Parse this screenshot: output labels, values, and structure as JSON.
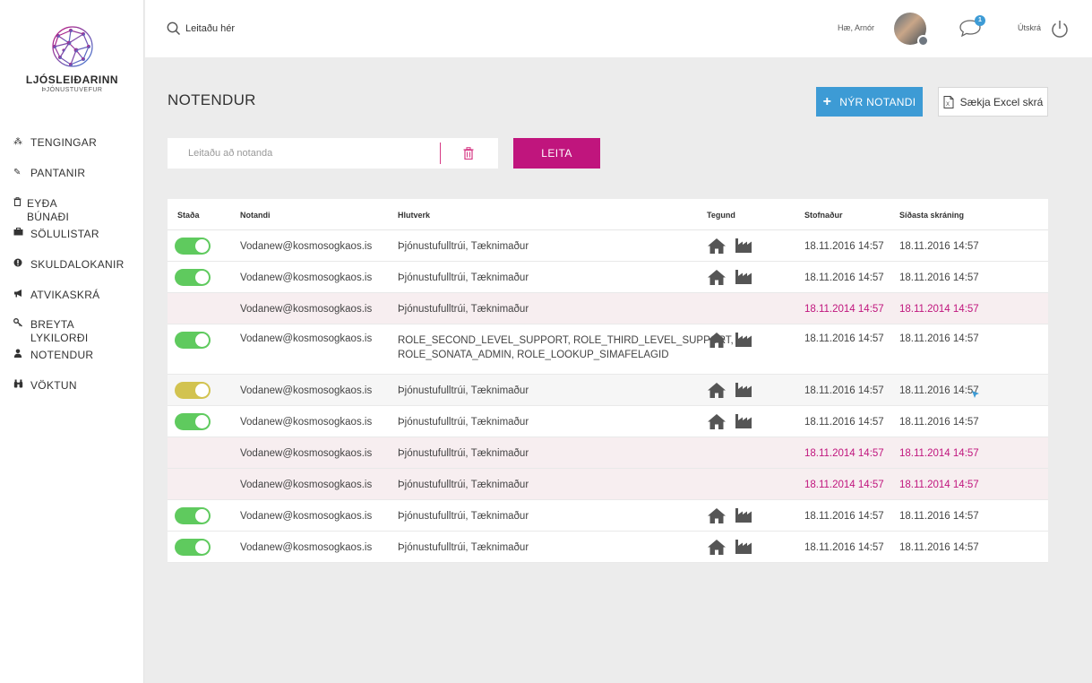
{
  "brand": {
    "name": "LJÓSLEIÐARINN",
    "subtitle": "ÞJÓNUSTUVEFUR"
  },
  "sidebar": {
    "items": [
      {
        "label": "TENGINGAR",
        "icon": "connections-icon"
      },
      {
        "label": "PANTANIR",
        "icon": "orders-icon"
      },
      {
        "label": "EYÐA BÚNAÐI",
        "icon": "trash-icon"
      },
      {
        "label": "SÖLULISTAR",
        "icon": "briefcase-icon"
      },
      {
        "label": "SKULDALOKANIR",
        "icon": "alert-icon"
      },
      {
        "label": "ATVIKASKRÁ",
        "icon": "megaphone-icon"
      },
      {
        "label": "BREYTA\nLYKILORÐI",
        "icon": "key-icon"
      },
      {
        "label": "NOTENDUR",
        "icon": "user-icon"
      },
      {
        "label": "VÖKTUN",
        "icon": "binoculars-icon"
      }
    ]
  },
  "topbar": {
    "search_placeholder": "Leitaðu hér",
    "greeting": "Hæ, Arnór",
    "notification_count": "1",
    "logout_label": "Útskrá"
  },
  "main": {
    "title": "NOTENDUR",
    "new_user_button": "NÝR NOTANDI",
    "excel_button": "Sækja Excel skrá",
    "user_search_placeholder": "Leitaðu að notanda",
    "search_button": "LEITA"
  },
  "table": {
    "columns": [
      "Staða",
      "Notandi",
      "Hlutverk",
      "Tegund",
      "Stofnaður",
      "Síðasta skráning"
    ],
    "rows": [
      {
        "status": "on",
        "user": "Vodanew@kosmosogkaos.is",
        "role": "Þjónustufulltrúi, Tæknimaður",
        "types": [
          "home-icon",
          "factory-icon"
        ],
        "created": "18.11.2016 14:57",
        "last_login": "18.11.2016 14:57"
      },
      {
        "status": "on",
        "user": "Vodanew@kosmosogkaos.is",
        "role": "Þjónustufulltrúi, Tæknimaður",
        "types": [
          "home-icon",
          "factory-icon"
        ],
        "created": "18.11.2016 14:57",
        "last_login": "18.11.2016 14:57"
      },
      {
        "status": "none",
        "user": "Vodanew@kosmosogkaos.is",
        "role": "Þjónustufulltrúi, Tæknimaður",
        "types": [],
        "created": "18.11.2014 14:57",
        "last_login": "18.11.2014 14:57"
      },
      {
        "status": "on",
        "user": "Vodanew@kosmosogkaos.is",
        "role": "ROLE_SECOND_LEVEL_SUPPORT, ROLE_THIRD_LEVEL_SUPPORT,\nROLE_SONATA_ADMIN, ROLE_LOOKUP_SIMAFELAGID",
        "types": [
          "home-icon",
          "factory-icon"
        ],
        "created": "18.11.2016 14:57",
        "last_login": "18.11.2016 14:57"
      },
      {
        "status": "pending",
        "user": "Vodanew@kosmosogkaos.is",
        "role": "Þjónustufulltrúi, Tæknimaður",
        "types": [
          "home-icon",
          "factory-icon"
        ],
        "created": "18.11.2016 14:57",
        "last_login": "18.11.2016 14:57"
      },
      {
        "status": "on",
        "user": "Vodanew@kosmosogkaos.is",
        "role": "Þjónustufulltrúi, Tæknimaður",
        "types": [
          "home-icon",
          "factory-icon"
        ],
        "created": "18.11.2016 14:57",
        "last_login": "18.11.2016 14:57"
      },
      {
        "status": "none",
        "user": "Vodanew@kosmosogkaos.is",
        "role": "Þjónustufulltrúi, Tæknimaður",
        "types": [],
        "created": "18.11.2014 14:57",
        "last_login": "18.11.2014 14:57"
      },
      {
        "status": "none",
        "user": "Vodanew@kosmosogkaos.is",
        "role": "Þjónustufulltrúi, Tæknimaður",
        "types": [],
        "created": "18.11.2014 14:57",
        "last_login": "18.11.2014 14:57"
      },
      {
        "status": "on",
        "user": "Vodanew@kosmosogkaos.is",
        "role": "Þjónustufulltrúi, Tæknimaður",
        "types": [
          "home-icon",
          "factory-icon"
        ],
        "created": "18.11.2016 14:57",
        "last_login": "18.11.2016 14:57"
      },
      {
        "status": "on",
        "user": "Vodanew@kosmosogkaos.is",
        "role": "Þjónustufulltrúi, Tæknimaður",
        "types": [
          "home-icon",
          "factory-icon"
        ],
        "created": "18.11.2016 14:57",
        "last_login": "18.11.2016 14:57"
      }
    ]
  },
  "colors": {
    "accent_blue": "#3d9bd5",
    "accent_magenta": "#c0157d",
    "toggle_on": "#5fca5e",
    "toggle_pending": "#d2c350",
    "inactive_row": "#f7eef0"
  }
}
